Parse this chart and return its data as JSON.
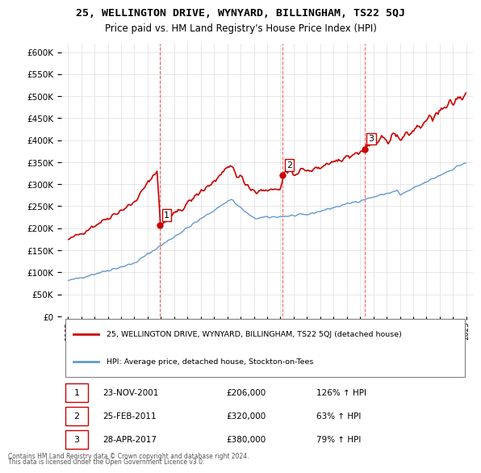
{
  "title": "25, WELLINGTON DRIVE, WYNYARD, BILLINGHAM, TS22 5QJ",
  "subtitle": "Price paid vs. HM Land Registry's House Price Index (HPI)",
  "legend_line1": "25, WELLINGTON DRIVE, WYNYARD, BILLINGHAM, TS22 5QJ (detached house)",
  "legend_line2": "HPI: Average price, detached house, Stockton-on-Tees",
  "transactions": [
    {
      "num": 1,
      "date": "23-NOV-2001",
      "price": 206000,
      "pct": "126%",
      "dir": "↑"
    },
    {
      "num": 2,
      "date": "25-FEB-2011",
      "price": 320000,
      "pct": "63%",
      "dir": "↑"
    },
    {
      "num": 3,
      "date": "28-APR-2017",
      "price": 380000,
      "pct": "79%",
      "dir": "↑"
    }
  ],
  "footnote1": "Contains HM Land Registry data © Crown copyright and database right 2024.",
  "footnote2": "This data is licensed under the Open Government Licence v3.0.",
  "house_color": "#cc0000",
  "hpi_color": "#6699cc",
  "vline_color": "#ff6666",
  "marker_color": "#cc0000",
  "hpi_marker_color": "#6699cc",
  "background": "#ffffff",
  "ylim": [
    0,
    620000
  ],
  "yticks": [
    0,
    50000,
    100000,
    150000,
    200000,
    250000,
    300000,
    350000,
    400000,
    450000,
    500000,
    550000,
    600000
  ]
}
